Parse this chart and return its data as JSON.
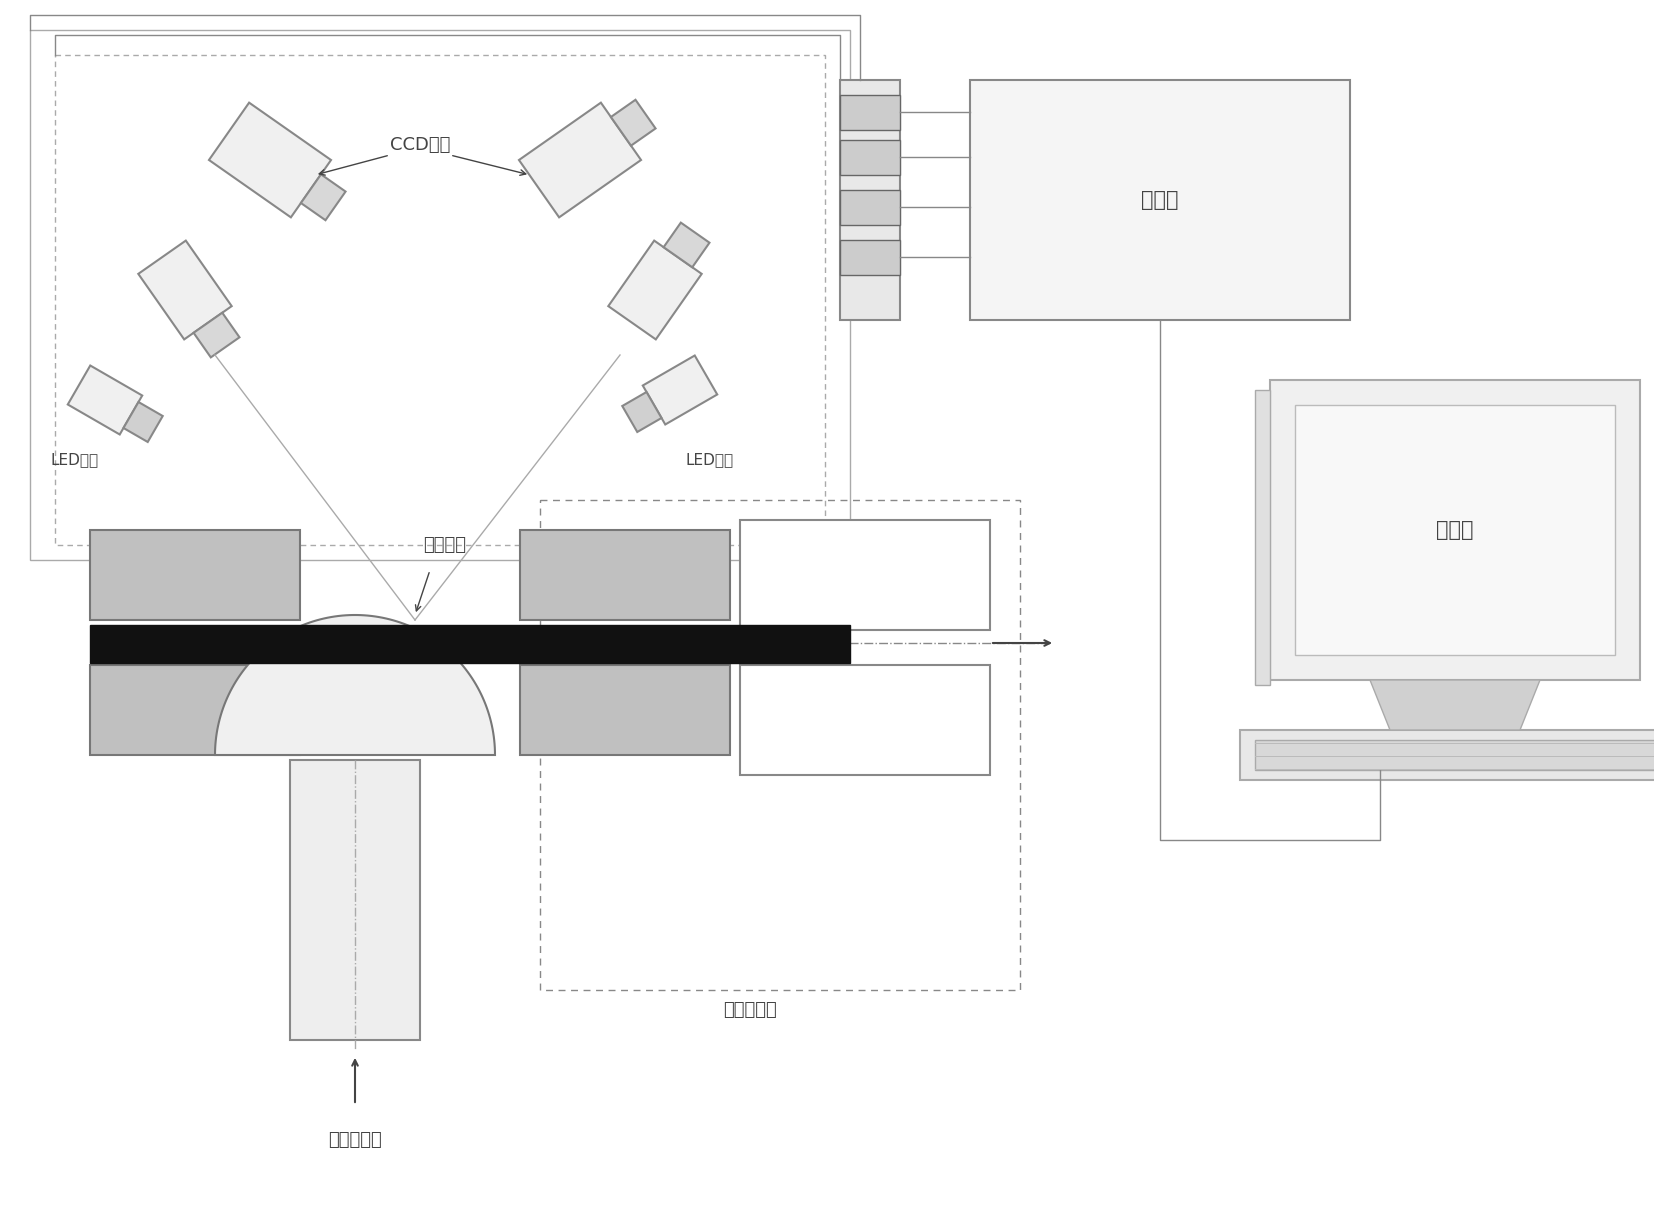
{
  "bg_color": "#ffffff",
  "gc": "#888888",
  "tc": "#444444",
  "label_CCD": "CCD相机",
  "label_LED_left": "LED光源",
  "label_LED_right": "LED光源",
  "label_controller": "控制器",
  "label_specimen": "板料试样",
  "label_tensile": "拉伸实验机",
  "label_forming": "板料成形机",
  "label_computer": "计算机"
}
